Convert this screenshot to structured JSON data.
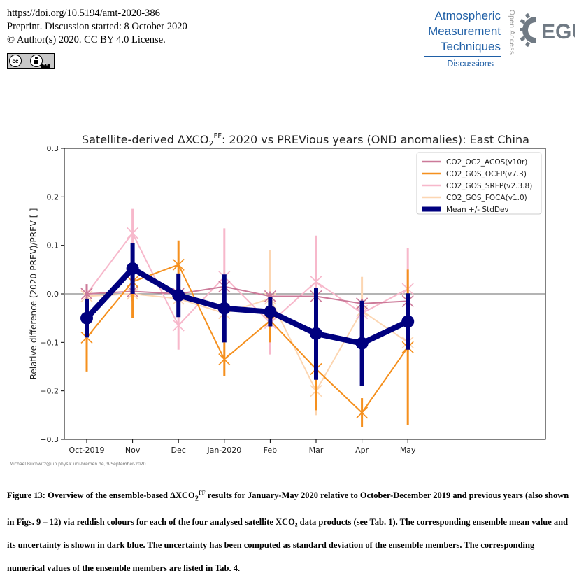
{
  "header": {
    "doi": "https://doi.org/10.5194/amt-2020-386",
    "preprint": "Preprint. Discussion started: 8 October 2020",
    "license": "© Author(s) 2020. CC BY 4.0 License.",
    "badge_by": "BY"
  },
  "journal": {
    "line1": "Atmospheric",
    "line2": "Measurement",
    "line3": "Techniques",
    "discussions": "Discussions",
    "open_access": "Open Access",
    "logo_text": "EGU"
  },
  "chart_data": {
    "type": "line",
    "title_main": "Satellite-derived ΔXCO",
    "title_sub": "2",
    "title_sup": "FF",
    "title_rest": ": 2020 vs PREVious years (OND anomalies): East China",
    "ylabel": "Relative difference (2020-PREV)/PREV [-]",
    "categories": [
      "Oct-2019",
      "Nov",
      "Dec",
      "Jan-2020",
      "Feb",
      "Mar",
      "Apr",
      "May"
    ],
    "ylim": [
      -0.3,
      0.3
    ],
    "yticks": [
      "0.3",
      "0.2",
      "0.1",
      "0.0",
      "−0.1",
      "−0.2",
      "−0.3"
    ],
    "credit": "Michael.Buchwitz@iup.physik.uni-bremen.de, 9-September-2020",
    "legend_position": "top-right",
    "series": [
      {
        "name": "CO2_OC2_ACOS(v10r)",
        "color": "#cc7a99",
        "values": [
          0.0,
          0.005,
          0.0,
          0.015,
          -0.005,
          -0.005,
          -0.02,
          -0.015
        ],
        "err": [
          0.02,
          0.02,
          0.01,
          0.01,
          0.01,
          0.01,
          0.01,
          0.01
        ]
      },
      {
        "name": "CO2_GOS_OCFP(v7.3)",
        "color": "#f5901e",
        "values": [
          -0.09,
          0.025,
          0.06,
          -0.135,
          -0.055,
          -0.155,
          -0.245,
          -0.11
        ],
        "err": [
          0.07,
          0.075,
          0.05,
          0.035,
          0.045,
          0.085,
          0.03,
          0.16
        ]
      },
      {
        "name": "CO2_GOS_SRFP(v2.3.8)",
        "color": "#f7b8cb",
        "values": [
          0.0,
          0.125,
          -0.065,
          0.035,
          -0.06,
          0.025,
          -0.04,
          0.01
        ],
        "err": [
          0.02,
          0.05,
          0.05,
          0.1,
          0.065,
          0.095,
          0.025,
          0.085
        ]
      },
      {
        "name": "CO2_GOS_FOCA(v1.0)",
        "color": "#fcd6b2",
        "values": [
          -0.005,
          0.0,
          -0.01,
          -0.04,
          -0.01,
          -0.2,
          -0.035,
          -0.1
        ],
        "err": [
          0.01,
          0.01,
          0.01,
          0.01,
          0.1,
          0.05,
          0.07,
          0.02
        ]
      },
      {
        "name": "Mean +/- StdDev",
        "color": "#00007f",
        "values": [
          -0.05,
          0.052,
          -0.003,
          -0.03,
          -0.037,
          -0.082,
          -0.102,
          -0.057
        ],
        "err": [
          0.04,
          0.052,
          0.045,
          0.07,
          0.03,
          0.095,
          0.088,
          0.058
        ]
      }
    ]
  },
  "caption": {
    "text1": "Figure 13: Overview of the ensemble-based ΔXCO",
    "sub": "2",
    "sup": "FF",
    "text2": " results for January-May 2020 relative to October-December 2019 and previous years (also shown in Figs. 9 – 12) via reddish colours for each of the four analysed satellite XCO₂ data products (see Tab. 1). The corresponding ensemble mean value and its uncertainty is shown in dark blue. The uncertainty has been computed as standard deviation of the ensemble members. The corresponding numerical values of the ensemble members are listed in Tab. 4."
  }
}
